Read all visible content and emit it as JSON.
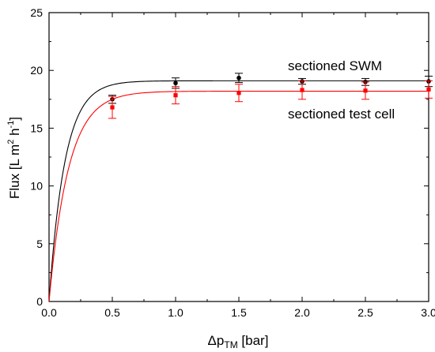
{
  "chart_data": {
    "type": "scatter",
    "title": "",
    "xlabel": {
      "prefix": "Δp",
      "sub": "TM",
      "suffix": " [bar]"
    },
    "ylabel": {
      "base": "Flux [L m",
      "sup1": "2",
      "mid": " h",
      "sup2": "-1",
      "end": "]"
    },
    "xlim": [
      0,
      3
    ],
    "ylim": [
      0,
      25
    ],
    "x_ticks": [
      0.0,
      0.5,
      1.0,
      1.5,
      2.0,
      2.5,
      3.0
    ],
    "x_tick_labels": [
      "0.0",
      "0.5",
      "1.0",
      "1.5",
      "2.0",
      "2.5",
      "3.0"
    ],
    "y_ticks": [
      0,
      5,
      10,
      15,
      20,
      25
    ],
    "y_tick_labels": [
      "0",
      "5",
      "10",
      "15",
      "20",
      "25"
    ],
    "grid": false,
    "legend": "none",
    "series": [
      {
        "name": "sectioned SWM",
        "color": "#000000",
        "marker": "circle",
        "x": [
          0.5,
          1.0,
          1.5,
          2.0,
          2.5,
          3.0
        ],
        "y": [
          17.5,
          18.9,
          19.35,
          19.05,
          19.0,
          19.05
        ],
        "err": [
          0.35,
          0.45,
          0.4,
          0.25,
          0.3,
          0.45
        ],
        "fit": {
          "plateau": 19.1,
          "rate": 8.0
        }
      },
      {
        "name": "sectioned test cell",
        "color": "#ff0000",
        "marker": "square",
        "x": [
          0.5,
          1.0,
          1.5,
          2.0,
          2.5,
          3.0
        ],
        "y": [
          16.8,
          17.85,
          18.05,
          18.3,
          18.25,
          18.35
        ],
        "err": [
          0.95,
          0.75,
          0.75,
          0.8,
          0.75,
          0.75
        ],
        "fit": {
          "plateau": 18.2,
          "rate": 6.5
        }
      }
    ],
    "annotations": [
      "sectioned SWM",
      "sectioned test cell"
    ]
  }
}
